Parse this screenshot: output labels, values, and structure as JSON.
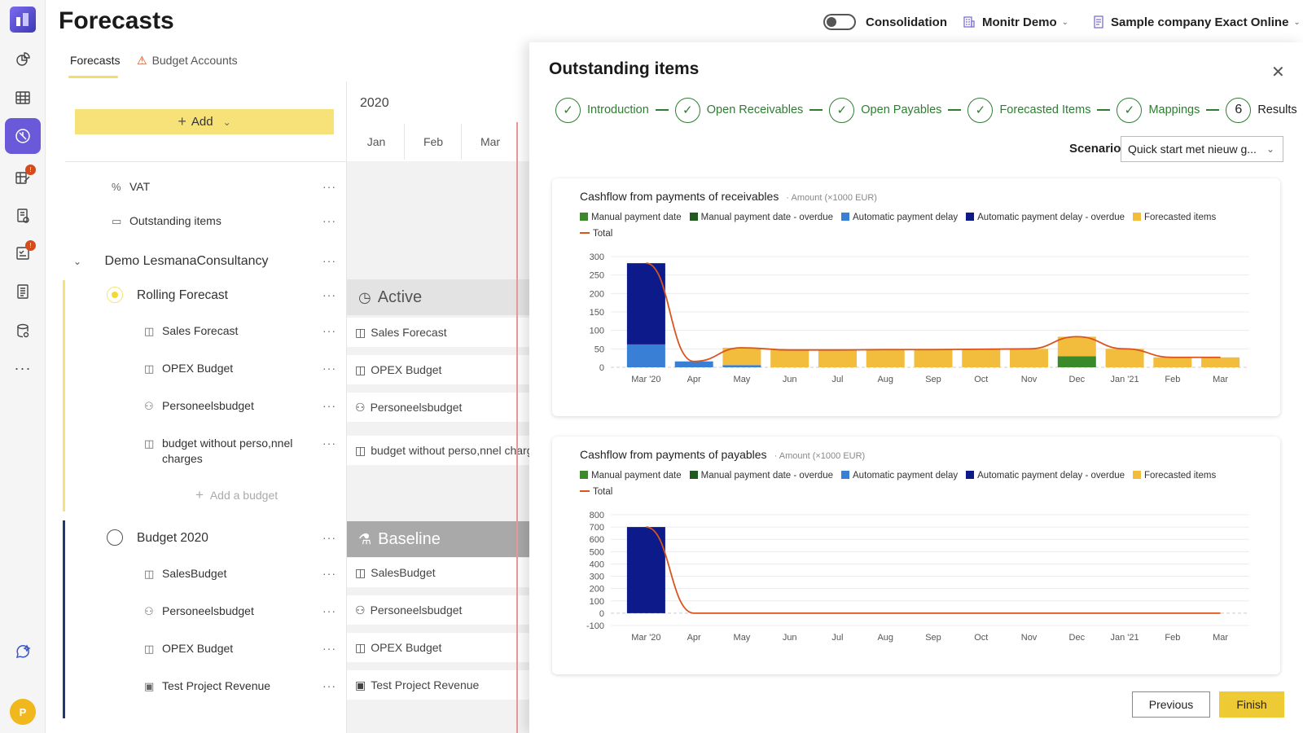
{
  "page": {
    "title": "Forecasts"
  },
  "topbar": {
    "consolidation_label": "Consolidation",
    "org_label": "Monitr Demo",
    "company_label": "Sample company Exact Online"
  },
  "tabs": [
    {
      "label": "Forecasts"
    },
    {
      "label": "Budget Accounts"
    }
  ],
  "tree": {
    "add_label": "Add",
    "vat_label": "VAT",
    "outstanding_label": "Outstanding items",
    "company_label": "Demo LesmanaConsultancy",
    "rolling": {
      "label": "Rolling Forecast",
      "items": [
        "Sales Forecast",
        "OPEX Budget",
        "Personeelsbudget",
        "budget without perso,nnel charges"
      ],
      "add_budget_label": "Add a budget"
    },
    "budget2020": {
      "label": "Budget 2020",
      "items": [
        "SalesBudget",
        "Personeelsbudget",
        "OPEX Budget",
        "Test Project Revenue"
      ]
    }
  },
  "gantt": {
    "year": "2020",
    "months": [
      "Jan",
      "Feb",
      "Mar"
    ],
    "active_label": "Active",
    "baseline_label": "Baseline",
    "active_items": [
      "Sales Forecast",
      "OPEX Budget",
      "Personeelsbudget",
      "budget without perso,nnel charges"
    ],
    "baseline_items": [
      "SalesBudget",
      "Personeelsbudget",
      "OPEX Budget",
      "Test Project Revenue"
    ]
  },
  "panel": {
    "title": "Outstanding items",
    "steps": [
      {
        "label": "Introduction"
      },
      {
        "label": "Open Receivables"
      },
      {
        "label": "Open Payables"
      },
      {
        "label": "Forecasted Items"
      },
      {
        "label": "Mappings"
      },
      {
        "label": "Results",
        "number": "6"
      }
    ],
    "scenario_label": "Scenario",
    "scenario_value": "Quick start met nieuw g...",
    "previous_label": "Previous",
    "finish_label": "Finish"
  },
  "legend": [
    {
      "name": "Manual payment date",
      "color": "#3a8a2c"
    },
    {
      "name": "Manual payment date - overdue",
      "color": "#1f5a1f"
    },
    {
      "name": "Automatic payment delay",
      "color": "#3a7fd6"
    },
    {
      "name": "Automatic payment delay - overdue",
      "color": "#0c1a8a"
    },
    {
      "name": "Forecasted items",
      "color": "#f2bd3d"
    },
    {
      "name": "Total",
      "color": "#d9541e",
      "line": true
    }
  ],
  "chart_data": [
    {
      "type": "bar",
      "title": "Cashflow from payments of receivables",
      "subtitle": "Amount (×1000 EUR)",
      "categories": [
        "Mar '20",
        "Apr",
        "May",
        "Jun",
        "Jul",
        "Aug",
        "Sep",
        "Oct",
        "Nov",
        "Dec",
        "Jan '21",
        "Feb",
        "Mar"
      ],
      "yticks": [
        0,
        50,
        100,
        150,
        200,
        250,
        300
      ],
      "ylim": [
        0,
        300
      ],
      "stacked": true,
      "series": [
        {
          "name": "Manual payment date",
          "values": [
            0,
            0,
            0,
            0,
            0,
            0,
            0,
            0,
            0,
            30,
            0,
            0,
            0
          ]
        },
        {
          "name": "Manual payment date - overdue",
          "values": [
            0,
            0,
            0,
            0,
            0,
            0,
            0,
            0,
            0,
            0,
            0,
            0,
            0
          ]
        },
        {
          "name": "Automatic payment delay",
          "values": [
            62,
            16,
            6,
            0,
            0,
            0,
            0,
            0,
            0,
            0,
            0,
            0,
            0
          ]
        },
        {
          "name": "Automatic payment delay - overdue",
          "values": [
            220,
            0,
            0,
            0,
            0,
            0,
            0,
            0,
            0,
            0,
            0,
            0,
            0
          ]
        },
        {
          "name": "Forecasted items",
          "values": [
            0,
            0,
            47,
            47,
            47,
            48,
            48,
            49,
            50,
            53,
            50,
            27,
            27
          ]
        }
      ],
      "total": [
        282,
        16,
        53,
        47,
        47,
        48,
        48,
        49,
        50,
        83,
        50,
        27,
        27
      ]
    },
    {
      "type": "bar",
      "title": "Cashflow from payments of payables",
      "subtitle": "Amount (×1000 EUR)",
      "categories": [
        "Mar '20",
        "Apr",
        "May",
        "Jun",
        "Jul",
        "Aug",
        "Sep",
        "Oct",
        "Nov",
        "Dec",
        "Jan '21",
        "Feb",
        "Mar"
      ],
      "yticks": [
        -100,
        0,
        100,
        200,
        300,
        400,
        500,
        600,
        700,
        800
      ],
      "ylim": [
        -100,
        800
      ],
      "stacked": true,
      "series": [
        {
          "name": "Manual payment date",
          "values": [
            0,
            0,
            0,
            0,
            0,
            0,
            0,
            0,
            0,
            0,
            0,
            0,
            0
          ]
        },
        {
          "name": "Manual payment date - overdue",
          "values": [
            0,
            0,
            0,
            0,
            0,
            0,
            0,
            0,
            0,
            0,
            0,
            0,
            0
          ]
        },
        {
          "name": "Automatic payment delay",
          "values": [
            0,
            0,
            0,
            0,
            0,
            0,
            0,
            0,
            0,
            0,
            0,
            0,
            0
          ]
        },
        {
          "name": "Automatic payment delay - overdue",
          "values": [
            700,
            0,
            0,
            0,
            0,
            0,
            0,
            0,
            0,
            0,
            0,
            0,
            0
          ]
        },
        {
          "name": "Forecasted items",
          "values": [
            0,
            0,
            0,
            0,
            0,
            0,
            0,
            0,
            0,
            0,
            0,
            0,
            0
          ]
        }
      ],
      "total": [
        700,
        0,
        0,
        0,
        0,
        0,
        0,
        0,
        0,
        0,
        0,
        0,
        0
      ]
    }
  ]
}
